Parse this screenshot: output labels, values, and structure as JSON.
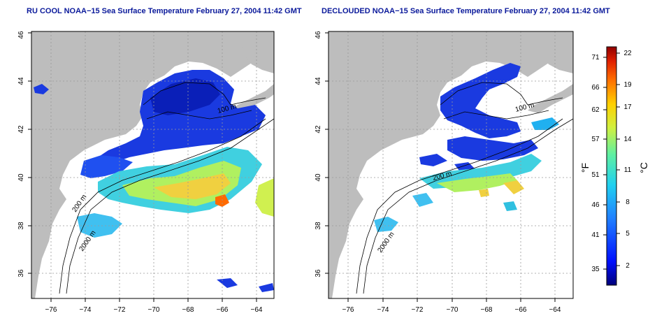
{
  "panels": [
    {
      "title": "RU COOL NOAA−15 Sea Surface Temperature February 27, 2004 11:42 GMT",
      "contour_labels": [
        "100 m",
        "200 m",
        "2000 m"
      ]
    },
    {
      "title": "DECLOUDED NOAA−15 Sea Surface Temperature February 27, 2004 11:42 GMT",
      "contour_labels": [
        "100 m",
        "200 m",
        "2000 m"
      ]
    }
  ],
  "axes": {
    "x_ticks": [
      "−76",
      "−74",
      "−72",
      "−70",
      "−68",
      "−66",
      "−64"
    ],
    "y_ticks": [
      "36",
      "38",
      "40",
      "42",
      "44",
      "46"
    ]
  },
  "colorbar": {
    "fahrenheit_ticks": [
      "71",
      "66",
      "62",
      "57",
      "51",
      "46",
      "41",
      "35"
    ],
    "celsius_ticks": [
      "22",
      "19",
      "17",
      "14",
      "11",
      "8",
      "5",
      "2"
    ],
    "fahrenheit_unit": "°F",
    "celsius_unit": "°C",
    "colors": [
      "#0000a0",
      "#0010ff",
      "#2070ff",
      "#20c0ff",
      "#30e0c0",
      "#80f080",
      "#e0f040",
      "#ffc000",
      "#ff6000",
      "#d01000",
      "#900000"
    ]
  },
  "colors": {
    "land": "#bdbdbd",
    "ocean": "#ffffff",
    "grid": "#999999",
    "title": "#0b1a9b"
  }
}
